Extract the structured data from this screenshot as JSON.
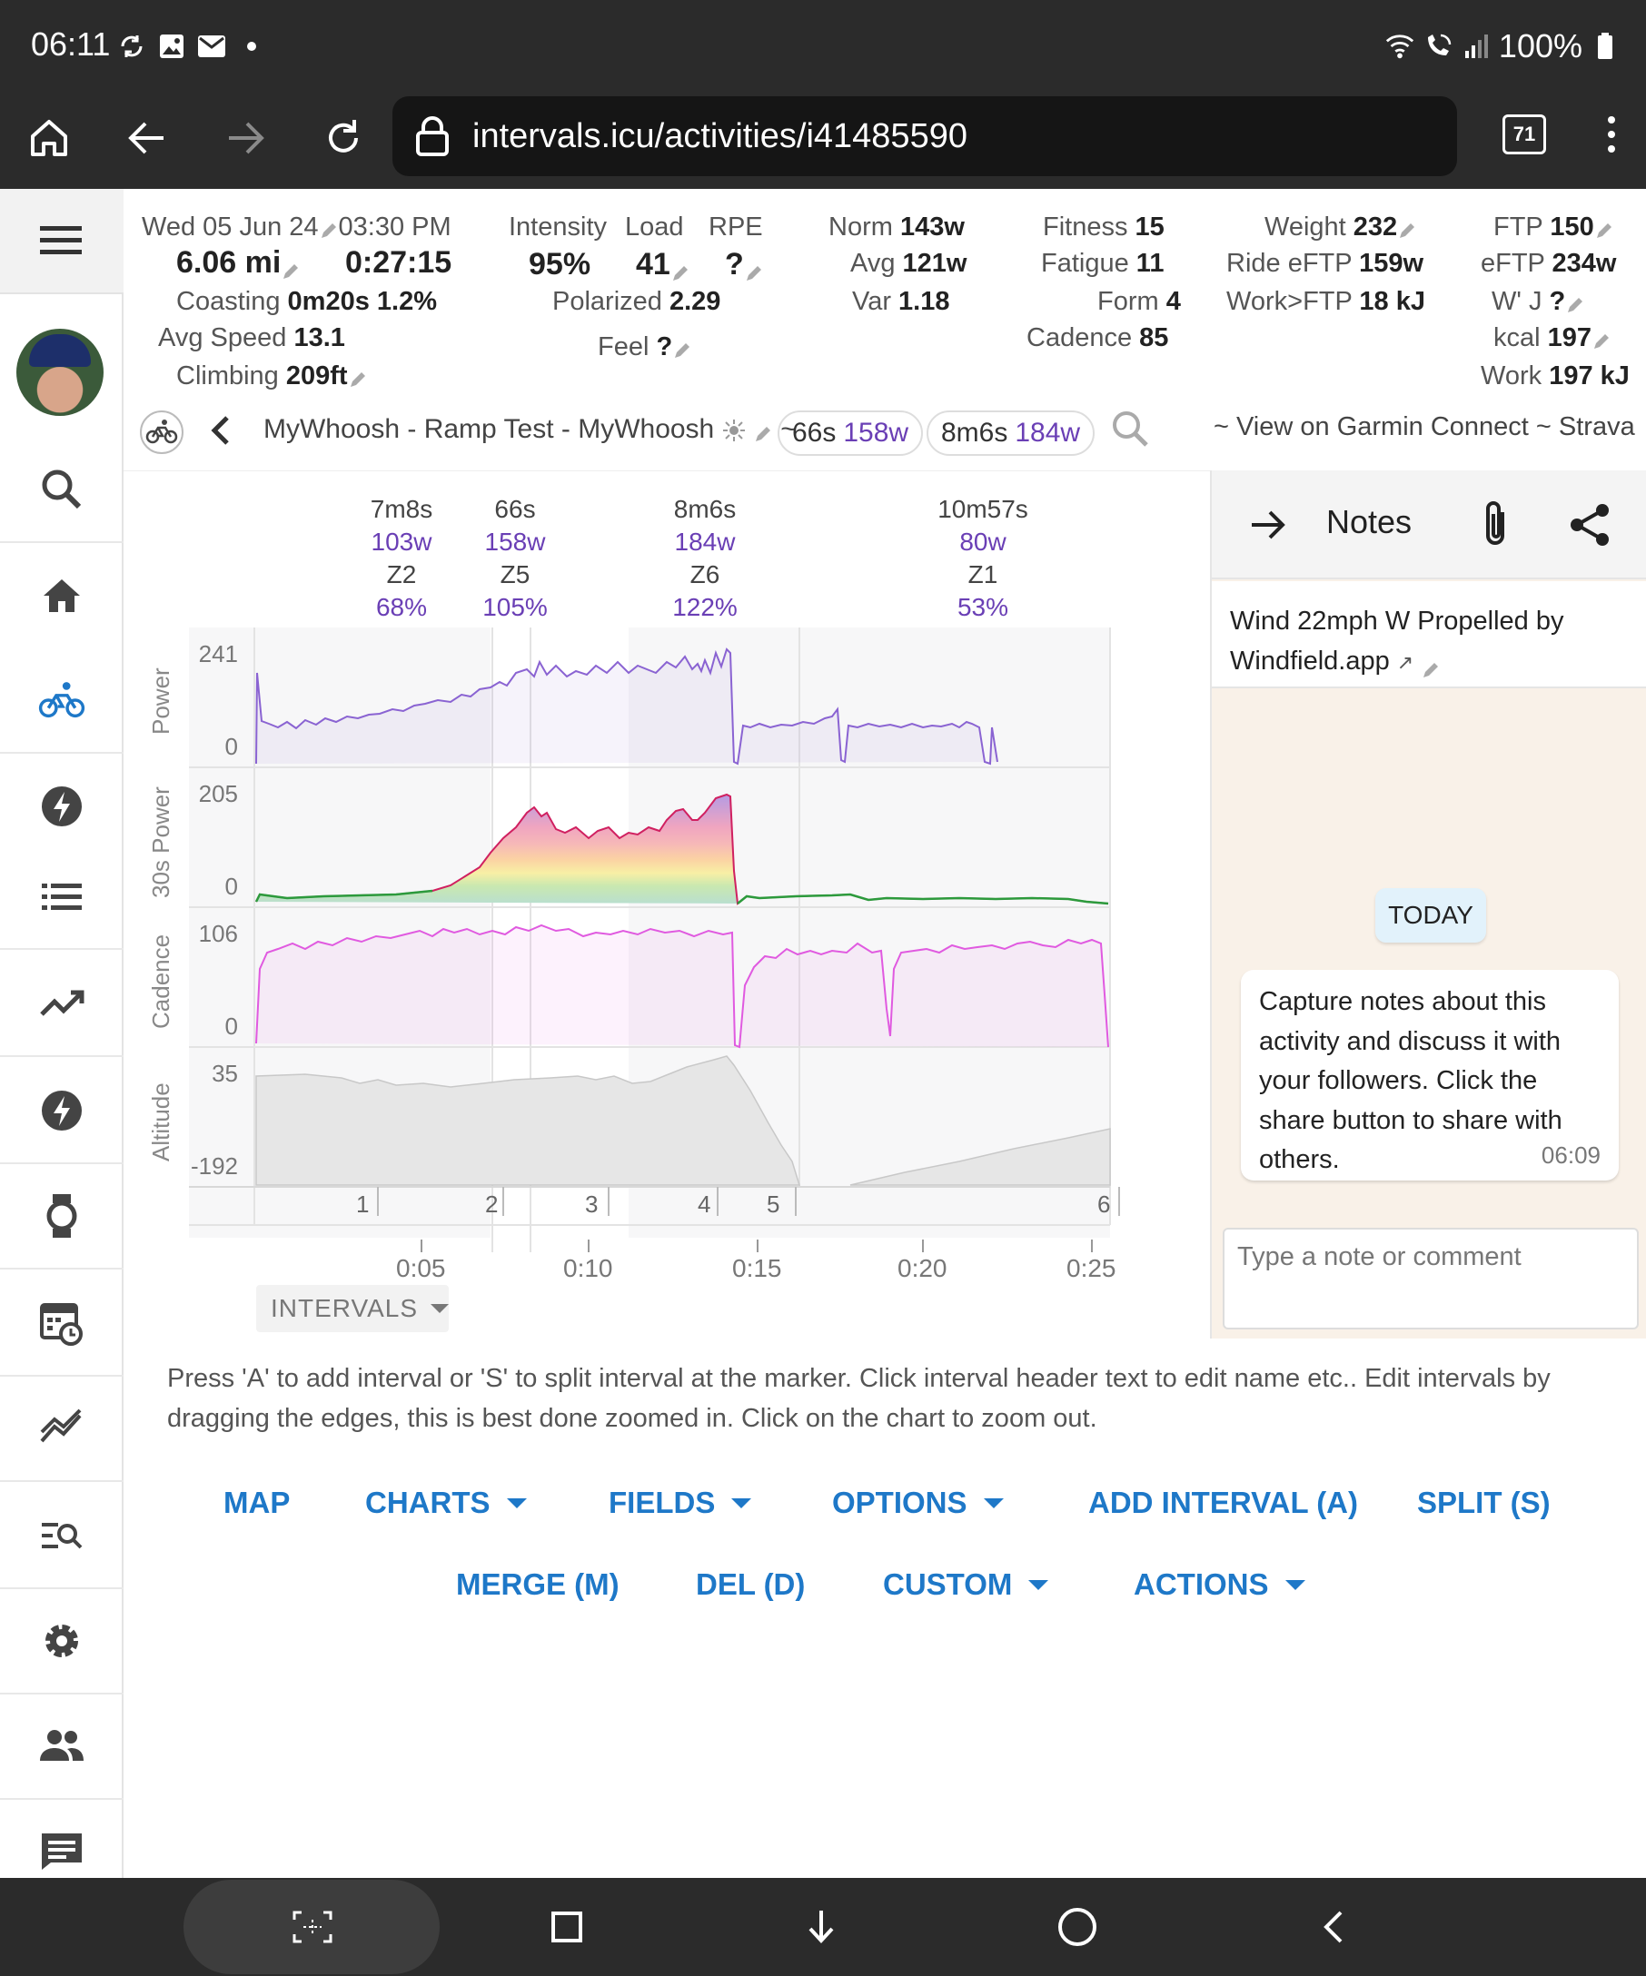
{
  "status_bar": {
    "time": "06:11",
    "battery": "100%",
    "left_icons": [
      "sync-icon",
      "gallery-icon",
      "mail-icon",
      "dot-icon"
    ],
    "right_icons": [
      "wifi-icon",
      "wifi-calling-icon",
      "signal-icon",
      "battery-icon"
    ]
  },
  "browser": {
    "url": "intervals.icu/activities/i41485590",
    "tab_count": "71"
  },
  "sidebar": {
    "items": [
      "menu",
      "avatar",
      "search",
      "home",
      "cycling",
      "power",
      "list",
      "trends",
      "power-2",
      "watch",
      "calendar-time",
      "compare",
      "search-list",
      "settings",
      "people",
      "chat"
    ],
    "active": "cycling",
    "active_color": "#1e78c8"
  },
  "stats": {
    "date": "Wed 05 Jun 24",
    "time": "03:30 PM",
    "distance": "6.06 mi",
    "duration": "0:27:15",
    "coasting_label": "Coasting",
    "coasting_value": "0m20s",
    "coasting_pct": "1.2%",
    "avg_speed_label": "Avg Speed",
    "avg_speed_value": "13.1",
    "climbing_label": "Climbing",
    "climbing_value": "209ft",
    "intensity_label": "Intensity",
    "intensity_value": "95%",
    "load_label": "Load",
    "load_value": "41",
    "rpe_label": "RPE",
    "rpe_value": "?",
    "polarized_label": "Polarized",
    "polarized_value": "2.29",
    "feel_label": "Feel",
    "feel_value": "?",
    "norm_label": "Norm",
    "norm_value": "143w",
    "avg_label": "Avg",
    "avg_value": "121w",
    "var_label": "Var",
    "var_value": "1.18",
    "fitness_label": "Fitness",
    "fitness_value": "15",
    "fatigue_label": "Fatigue",
    "fatigue_value": "11",
    "form_label": "Form",
    "form_value": "4",
    "cadence_label": "Cadence",
    "cadence_value": "85",
    "weight_label": "Weight",
    "weight_value": "232",
    "ride_eftp_label": "Ride eFTP",
    "ride_eftp_value": "159w",
    "work_ftp_label": "Work>FTP",
    "work_ftp_value": "18 kJ",
    "ftp_label": "FTP",
    "ftp_value": "150",
    "eftp_label": "eFTP",
    "eftp_value": "234w",
    "wj_label": "W' J",
    "wj_value": "?",
    "kcal_label": "kcal",
    "kcal_value": "197",
    "work_label": "Work",
    "work_value": "197 kJ"
  },
  "activity": {
    "name": "MyWhoosh - Ramp Test - MyWhoosh",
    "separator": "~",
    "chip1_time": "66s",
    "chip1_power": "158w",
    "chip2_time": "8m6s",
    "chip2_power": "184w",
    "links": "~ View on Garmin Connect ~ Strava"
  },
  "intervals": [
    {
      "duration": "7m8s",
      "power": "103w",
      "zone": "Z2",
      "pct": "68%"
    },
    {
      "duration": "66s",
      "power": "158w",
      "zone": "Z5",
      "pct": "105%"
    },
    {
      "duration": "8m6s",
      "power": "184w",
      "zone": "Z6",
      "pct": "122%"
    },
    {
      "duration": "10m57s",
      "power": "80w",
      "zone": "Z1",
      "pct": "53%"
    }
  ],
  "charts": {
    "power": {
      "label": "Power",
      "max": "241",
      "min": "0",
      "color": "#8a63d2"
    },
    "power30": {
      "label": "30s Power",
      "max": "205",
      "min": "0"
    },
    "cadence": {
      "label": "Cadence",
      "max": "106",
      "min": "0",
      "color": "#e05ae0"
    },
    "altitude": {
      "label": "Altitude",
      "max": "35",
      "min": "-192"
    },
    "laps": [
      "1",
      "2",
      "3",
      "4",
      "5",
      "6"
    ],
    "time_ticks": [
      "0:05",
      "0:10",
      "0:15",
      "0:20",
      "0:25"
    ],
    "intervals_dropdown": "INTERVALS"
  },
  "notes": {
    "title": "Notes",
    "body_line1": "Wind 22mph W Propelled by",
    "body_line2": "Windfield.app",
    "today": "TODAY",
    "bubble_text": "Capture notes about this activity and discuss it with your followers. Click the share button to share with others.",
    "bubble_time": "06:09",
    "input_placeholder": "Type a note or comment"
  },
  "help_text": "Press 'A' to add interval or 'S' to split interval at the marker. Click interval header text to edit name etc.. Edit intervals by dragging the edges, this is best done zoomed in. Click on the chart to zoom out.",
  "actions": {
    "map": "MAP",
    "charts": "CHARTS",
    "fields": "FIELDS",
    "options": "OPTIONS",
    "add_interval": "ADD INTERVAL (A)",
    "split": "SPLIT (S)",
    "merge": "MERGE (M)",
    "del": "DEL (D)",
    "custom": "CUSTOM",
    "actions": "ACTIONS"
  }
}
